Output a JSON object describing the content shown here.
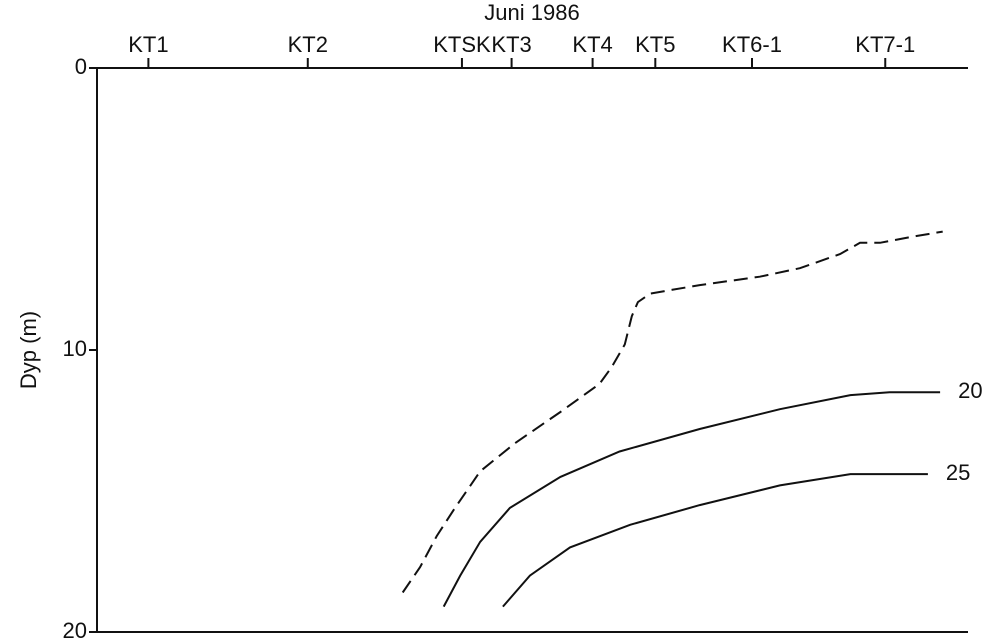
{
  "chart_data": {
    "type": "line",
    "title": "Juni 1986",
    "y_label": "Dyp (m)",
    "xlim": [
      0,
      100
    ],
    "xticks": [
      {
        "value": 5.9,
        "label": "KT1"
      },
      {
        "value": 24.2,
        "label": "KT2"
      },
      {
        "value": 41.9,
        "label": "KTSK"
      },
      {
        "value": 47.6,
        "label": "KT3"
      },
      {
        "value": 56.9,
        "label": "KT4"
      },
      {
        "value": 64.1,
        "label": "KT5"
      },
      {
        "value": 75.2,
        "label": "KT6-1"
      },
      {
        "value": 90.5,
        "label": "KT7-1"
      }
    ],
    "ylim": [
      0,
      20
    ],
    "yticks": [
      0,
      10,
      20
    ],
    "y_inverted": true,
    "series": [
      {
        "color": "#111111",
        "dashed": true,
        "x": [
          35.1,
          37.1,
          39.0,
          41.1,
          44.0,
          48.0,
          53.2,
          57.7,
          59.1,
          60.6,
          61.4,
          62.1,
          63.5,
          69.2,
          76.1,
          80.7,
          85.3,
          87.6,
          89.9,
          93.3,
          97.1
        ],
        "values": [
          18.6,
          17.7,
          16.6,
          15.6,
          14.3,
          13.3,
          12.2,
          11.2,
          10.6,
          9.8,
          8.8,
          8.3,
          8.0,
          7.7,
          7.4,
          7.1,
          6.6,
          6.2,
          6.2,
          6.0,
          5.8
        ]
      },
      {
        "name": "20",
        "color": "#111111",
        "dashed": false,
        "x": [
          39.8,
          41.7,
          44.0,
          47.4,
          53.2,
          60.0,
          69.2,
          78.4,
          86.5,
          91.0,
          96.8
        ],
        "values": [
          19.1,
          18.0,
          16.8,
          15.6,
          14.5,
          13.6,
          12.8,
          12.1,
          11.6,
          11.5,
          11.5
        ]
      },
      {
        "name": "25",
        "color": "#111111",
        "dashed": false,
        "x": [
          46.6,
          49.7,
          54.3,
          61.2,
          69.2,
          78.4,
          86.5,
          92.2,
          95.4
        ],
        "values": [
          19.1,
          18.0,
          17.0,
          16.2,
          15.5,
          14.8,
          14.4,
          14.4,
          14.4
        ]
      }
    ]
  }
}
